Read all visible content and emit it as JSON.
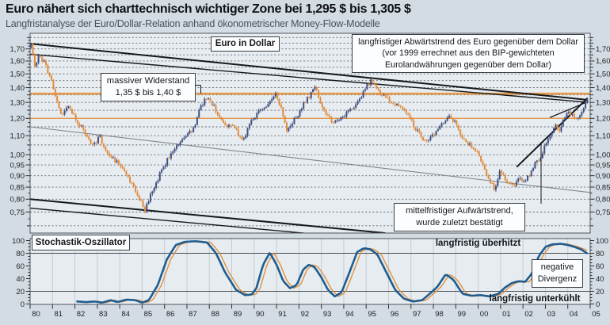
{
  "page": {
    "title": "Euro nähert sich charttechnisch wichtiger Zone bei 1,295 $ bis 1,305 $",
    "subtitle": "Langfristanalyse der Euro/Dollar-Relation anhand ökonometrischer Money-Flow-Modelle"
  },
  "colors": {
    "background": "#d3dce3",
    "plot_background": "#e7ecf0",
    "grid": "#41454d",
    "frame": "#50555c",
    "candle_up": "#41507f",
    "candle_down": "#e08b3d",
    "resistance_line": "#e59a4c",
    "trend_line": "#15181c",
    "median_line": "#80878d",
    "oscillator_line": "#1f5c8f",
    "signal_line": "#e0903f",
    "year_gridline": "#c3ccd3"
  },
  "main_chart": {
    "label": "Euro in Dollar",
    "annotations": {
      "downtrend": "langfristiger Abwärtstrend des Euro gegenüber dem Dollar (vor 1999 errechnet aus den BIP-gewichteten Eurolandwährungen gegenüber dem Dollar)",
      "resistance_lines": [
        "massiver Widerstand",
        "1,35 $ bis 1,40 $"
      ],
      "uptrend_lines": [
        "mittelfristiger Aufwärtstrend,",
        "wurde zuletzt bestätigt"
      ]
    }
  },
  "oscillator": {
    "label": "Stochastik-Oszillator",
    "annotations": {
      "overheated": "langfristig überhitzt",
      "undercooled": "langfristig unterkühlt",
      "divergence_lines": [
        "negative",
        "Divergenz"
      ]
    }
  },
  "chart_data": [
    {
      "type": "candlestick",
      "title": "Euro in Dollar",
      "x_range": [
        1980,
        2005
      ],
      "x_tick_labels": [
        "80",
        "81",
        "82",
        "83",
        "84",
        "85",
        "86",
        "87",
        "88",
        "89",
        "90",
        "91",
        "92",
        "93",
        "94",
        "95",
        "96",
        "97",
        "98",
        "99",
        "00",
        "01",
        "02",
        "03",
        "04",
        "05"
      ],
      "y_axis": {
        "scale": "log",
        "grid_min": 0.7,
        "grid_max": 1.82,
        "grid_step": 0.05,
        "minor_step": 0.025,
        "labeled_ticks": [
          {
            "v": 1.7,
            "t": "1,70"
          },
          {
            "v": 1.6,
            "t": "1,60"
          },
          {
            "v": 1.5,
            "t": "1,50"
          },
          {
            "v": 1.4,
            "t": "1,40"
          },
          {
            "v": 1.3,
            "t": "1,30"
          },
          {
            "v": 1.2,
            "t": "1,20"
          },
          {
            "v": 1.1,
            "t": "1,10"
          },
          {
            "v": 1.0,
            "t": "1,00"
          },
          {
            "v": 0.95,
            "t": "0,95"
          },
          {
            "v": 0.9,
            "t": "0,90"
          },
          {
            "v": 0.85,
            "t": "0,85"
          },
          {
            "v": 0.8,
            "t": "0,80"
          },
          {
            "v": 0.75,
            "t": "0,75"
          }
        ]
      },
      "resistance_levels": [
        {
          "name": "resistance-zone-1.35-1.40",
          "value": 1.358,
          "width": 2.6
        },
        {
          "name": "support-1.20",
          "value": 1.2,
          "width": 1.3
        }
      ],
      "trend_lines": [
        {
          "name": "long-term-downtrend-upper",
          "points": [
            [
              1980.0,
              1.745
            ],
            [
              2004.85,
              1.317
            ]
          ],
          "color": "trend_line",
          "width": 2.0
        },
        {
          "name": "long-term-downtrend-lower",
          "points": [
            [
              1980.0,
              1.655
            ],
            [
              2004.85,
              1.301
            ]
          ],
          "color": "trend_line",
          "width": 1.4
        },
        {
          "name": "lower-channel-upper",
          "points": [
            [
              1980.0,
              0.8
            ],
            [
              1995.85,
              0.675
            ]
          ],
          "color": "trend_line",
          "width": 2.0
        },
        {
          "name": "lower-channel-lower",
          "points": [
            [
              1980.0,
              0.765
            ],
            [
              1992.2,
              0.675
            ]
          ],
          "color": "trend_line",
          "width": 1.4
        },
        {
          "name": "median-line",
          "points": [
            [
              1980.0,
              1.15
            ],
            [
              2005.05,
              0.827
            ]
          ],
          "color": "median_line",
          "width": 1.1
        },
        {
          "name": "mid-term-uptrend",
          "points": [
            [
              2001.72,
              0.94
            ],
            [
              2004.88,
              1.328
            ]
          ],
          "color": "trend_line",
          "width": 2.0
        },
        {
          "name": "mid-term-uptrend-inner",
          "points": [
            [
              2003.2,
              1.205
            ],
            [
              2004.82,
              1.3
            ]
          ],
          "color": "trend_line",
          "width": 1.3
        }
      ],
      "price_anchors": [
        [
          1980.0,
          1.71
        ],
        [
          1980.1,
          1.74
        ],
        [
          1980.25,
          1.56
        ],
        [
          1980.45,
          1.64
        ],
        [
          1980.7,
          1.58
        ],
        [
          1980.95,
          1.47
        ],
        [
          1981.2,
          1.32
        ],
        [
          1981.45,
          1.22
        ],
        [
          1981.7,
          1.27
        ],
        [
          1981.95,
          1.23
        ],
        [
          1982.2,
          1.17
        ],
        [
          1982.45,
          1.13
        ],
        [
          1982.7,
          1.07
        ],
        [
          1982.95,
          1.05
        ],
        [
          1983.1,
          1.11
        ],
        [
          1983.35,
          1.04
        ],
        [
          1983.6,
          1.0
        ],
        [
          1983.85,
          0.97
        ],
        [
          1984.1,
          0.94
        ],
        [
          1984.35,
          0.91
        ],
        [
          1984.6,
          0.86
        ],
        [
          1984.85,
          0.81
        ],
        [
          1985.05,
          0.78
        ],
        [
          1985.18,
          0.755
        ],
        [
          1985.35,
          0.8
        ],
        [
          1985.6,
          0.85
        ],
        [
          1985.85,
          0.91
        ],
        [
          1986.1,
          0.96
        ],
        [
          1986.35,
          1.01
        ],
        [
          1986.6,
          1.045
        ],
        [
          1986.85,
          1.07
        ],
        [
          1987.1,
          1.11
        ],
        [
          1987.35,
          1.14
        ],
        [
          1987.6,
          1.26
        ],
        [
          1987.8,
          1.3
        ],
        [
          1987.95,
          1.345
        ],
        [
          1988.2,
          1.28
        ],
        [
          1988.5,
          1.21
        ],
        [
          1988.8,
          1.14
        ],
        [
          1989.05,
          1.18
        ],
        [
          1989.3,
          1.11
        ],
        [
          1989.55,
          1.08
        ],
        [
          1989.8,
          1.15
        ],
        [
          1990.05,
          1.21
        ],
        [
          1990.3,
          1.25
        ],
        [
          1990.55,
          1.28
        ],
        [
          1990.8,
          1.31
        ],
        [
          1991.0,
          1.36
        ],
        [
          1991.2,
          1.28
        ],
        [
          1991.5,
          1.13
        ],
        [
          1991.75,
          1.18
        ],
        [
          1992.0,
          1.22
        ],
        [
          1992.25,
          1.29
        ],
        [
          1992.5,
          1.34
        ],
        [
          1992.75,
          1.4
        ],
        [
          1993.0,
          1.3
        ],
        [
          1993.3,
          1.22
        ],
        [
          1993.6,
          1.17
        ],
        [
          1993.9,
          1.21
        ],
        [
          1994.2,
          1.23
        ],
        [
          1994.5,
          1.27
        ],
        [
          1994.8,
          1.33
        ],
        [
          1995.1,
          1.42
        ],
        [
          1995.3,
          1.45
        ],
        [
          1995.6,
          1.37
        ],
        [
          1995.9,
          1.33
        ],
        [
          1996.2,
          1.3
        ],
        [
          1996.5,
          1.27
        ],
        [
          1996.8,
          1.24
        ],
        [
          1997.1,
          1.17
        ],
        [
          1997.4,
          1.11
        ],
        [
          1997.7,
          1.065
        ],
        [
          1997.95,
          1.09
        ],
        [
          1998.2,
          1.13
        ],
        [
          1998.45,
          1.17
        ],
        [
          1998.75,
          1.215
        ],
        [
          1999.0,
          1.175
        ],
        [
          1999.3,
          1.095
        ],
        [
          1999.6,
          1.06
        ],
        [
          1999.9,
          1.03
        ],
        [
          2000.2,
          0.96
        ],
        [
          2000.5,
          0.89
        ],
        [
          2000.8,
          0.835
        ],
        [
          2001.0,
          0.915
        ],
        [
          2001.3,
          0.88
        ],
        [
          2001.6,
          0.85
        ],
        [
          2001.9,
          0.895
        ],
        [
          2002.1,
          0.87
        ],
        [
          2002.35,
          0.91
        ],
        [
          2002.6,
          0.965
        ],
        [
          2002.85,
          0.99
        ],
        [
          2003.05,
          1.05
        ],
        [
          2003.25,
          1.09
        ],
        [
          2003.45,
          1.16
        ],
        [
          2003.65,
          1.13
        ],
        [
          2003.85,
          1.19
        ],
        [
          2004.05,
          1.26
        ],
        [
          2004.25,
          1.215
        ],
        [
          2004.45,
          1.2
        ],
        [
          2004.65,
          1.245
        ],
        [
          2004.8,
          1.29
        ],
        [
          2004.92,
          1.315
        ]
      ]
    },
    {
      "type": "line",
      "title": "Stochastik-Oszillator",
      "y_range": [
        0,
        100
      ],
      "labeled_ticks": [
        0,
        20,
        40,
        60,
        80,
        100
      ],
      "threshold_lines": [
        20,
        80
      ],
      "series": [
        {
          "name": "stochastik",
          "color": "oscillator_line",
          "width": 2.6,
          "points": [
            [
              1982.1,
              4
            ],
            [
              1982.5,
              3
            ],
            [
              1982.9,
              4
            ],
            [
              1983.2,
              2
            ],
            [
              1983.6,
              6
            ],
            [
              1983.9,
              3
            ],
            [
              1984.3,
              7
            ],
            [
              1984.7,
              6
            ],
            [
              1985.0,
              2
            ],
            [
              1985.3,
              6
            ],
            [
              1985.7,
              30
            ],
            [
              1986.1,
              70
            ],
            [
              1986.5,
              93
            ],
            [
              1986.9,
              98
            ],
            [
              1987.4,
              99
            ],
            [
              1987.9,
              97
            ],
            [
              1988.3,
              80
            ],
            [
              1988.7,
              50
            ],
            [
              1989.2,
              22
            ],
            [
              1989.6,
              14
            ],
            [
              1989.9,
              15
            ],
            [
              1990.1,
              25
            ],
            [
              1990.4,
              62
            ],
            [
              1990.7,
              81
            ],
            [
              1991.0,
              62
            ],
            [
              1991.3,
              36
            ],
            [
              1991.6,
              25
            ],
            [
              1991.9,
              30
            ],
            [
              1992.2,
              55
            ],
            [
              1992.45,
              62
            ],
            [
              1992.7,
              58
            ],
            [
              1993.0,
              42
            ],
            [
              1993.3,
              22
            ],
            [
              1993.6,
              12
            ],
            [
              1993.9,
              18
            ],
            [
              1994.2,
              45
            ],
            [
              1994.6,
              82
            ],
            [
              1994.9,
              88
            ],
            [
              1995.2,
              86
            ],
            [
              1995.5,
              78
            ],
            [
              1995.9,
              50
            ],
            [
              1996.3,
              22
            ],
            [
              1996.7,
              8
            ],
            [
              1997.1,
              4
            ],
            [
              1997.5,
              6
            ],
            [
              1997.9,
              18
            ],
            [
              1998.2,
              28
            ],
            [
              1998.55,
              47
            ],
            [
              1998.9,
              38
            ],
            [
              1999.3,
              16
            ],
            [
              1999.7,
              13
            ],
            [
              2000.1,
              14
            ],
            [
              2000.5,
              12
            ],
            [
              2000.9,
              16
            ],
            [
              2001.2,
              26
            ],
            [
              2001.5,
              33
            ],
            [
              2001.8,
              36
            ],
            [
              2002.1,
              35
            ],
            [
              2002.4,
              48
            ],
            [
              2002.7,
              75
            ],
            [
              2003.0,
              90
            ],
            [
              2003.3,
              94
            ],
            [
              2003.7,
              95
            ],
            [
              2004.0,
              93
            ],
            [
              2004.3,
              90
            ],
            [
              2004.6,
              86
            ],
            [
              2004.9,
              79
            ]
          ]
        },
        {
          "name": "signal",
          "color": "signal_line",
          "width": 1.4,
          "derived": "shift",
          "shift_x": 0.17
        }
      ]
    }
  ]
}
